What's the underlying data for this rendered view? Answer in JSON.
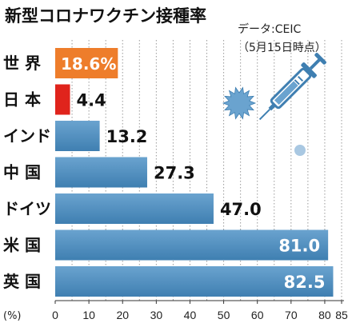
{
  "chart_data": {
    "type": "bar",
    "orientation": "horizontal",
    "title": "新型コロナワクチン接種率",
    "source": "データ:CEIC",
    "date_note": "（5月15日時点）",
    "unit_label": "(%)",
    "categories": [
      "世 界",
      "日 本",
      "インド",
      "中 国",
      "ドイツ",
      "米 国",
      "英 国"
    ],
    "values": [
      18.6,
      4.4,
      13.2,
      27.3,
      47.0,
      81.0,
      82.5
    ],
    "value_labels": [
      "18.6%",
      "4.4",
      "13.2",
      "27.3",
      "47.0",
      "81.0",
      "82.5"
    ],
    "xlim": [
      0,
      85
    ],
    "x_ticks": [
      0,
      10,
      20,
      30,
      40,
      50,
      60,
      70,
      80,
      85
    ],
    "grid": "vertical-dotted",
    "colors": {
      "default_bar": "#4f8fbf",
      "world_bar": "#ee7d2b",
      "japan_bar": "#e0241c",
      "label_box_text": "#ffffff",
      "illustration": "#5b9bd0"
    },
    "icons": [
      "syringe-icon",
      "virus-icon"
    ]
  }
}
